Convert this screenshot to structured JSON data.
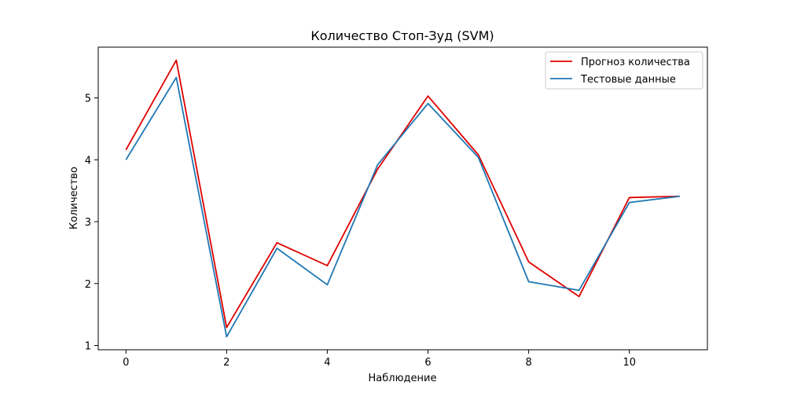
{
  "chart_data": {
    "type": "line",
    "title": "Количество Стоп-Зуд (SVM)",
    "xlabel": "Наблюдение",
    "ylabel": "Количество",
    "x": [
      0,
      1,
      2,
      3,
      4,
      5,
      6,
      7,
      8,
      9,
      10,
      11
    ],
    "xlim": [
      -0.55,
      11.55
    ],
    "ylim": [
      0.93,
      5.82
    ],
    "xticks": [
      0,
      2,
      4,
      6,
      8,
      10
    ],
    "yticks": [
      1,
      2,
      3,
      4,
      5
    ],
    "grid": false,
    "legend_position": "top-right",
    "series": [
      {
        "name": "Прогноз количества",
        "color": "#e00000",
        "values": [
          4.16,
          5.61,
          1.29,
          2.66,
          2.29,
          3.85,
          5.03,
          4.08,
          2.35,
          1.79,
          3.39,
          3.41
        ]
      },
      {
        "name": "Тестовые данные",
        "color": "#1f77b4",
        "values": [
          4.0,
          5.33,
          1.14,
          2.57,
          1.98,
          3.92,
          4.91,
          4.04,
          2.03,
          1.89,
          3.31,
          3.41
        ]
      }
    ]
  }
}
